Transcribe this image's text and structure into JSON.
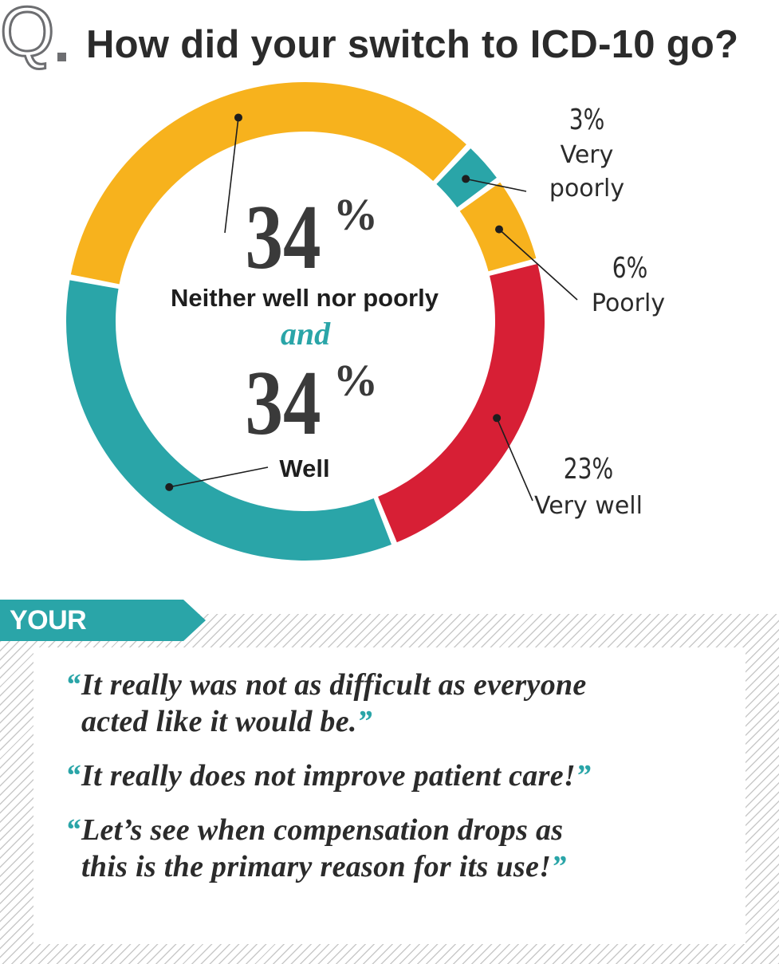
{
  "header": {
    "q_letter": "Q",
    "title": "How did your switch to ICD-10 go?"
  },
  "colors": {
    "yellow": "#f7b21d",
    "teal": "#2aa5a8",
    "red": "#d71f35",
    "connector": "#2aa5a8"
  },
  "chart_data": {
    "type": "pie",
    "title": "How did your switch to ICD-10 go?",
    "donut": true,
    "slices": [
      {
        "label": "Very poorly",
        "value": 3,
        "pct_text": "3%",
        "label_lines": [
          "Very",
          "poorly"
        ],
        "color": "#2aa5a8"
      },
      {
        "label": "Poorly",
        "value": 6,
        "pct_text": "6%",
        "label_lines": [
          "Poorly"
        ],
        "color": "#f7b21d"
      },
      {
        "label": "Very well",
        "value": 23,
        "pct_text": "23%",
        "label_lines": [
          "Very well"
        ],
        "color": "#d71f35"
      },
      {
        "label": "Well",
        "value": 34,
        "pct_text": "34",
        "label_lines": [
          "Well"
        ],
        "color": "#2aa5a8"
      },
      {
        "label": "Neither well nor poorly",
        "value": 34,
        "pct_text": "34",
        "label_lines": [
          "Neither well nor poorly"
        ],
        "color": "#f7b21d"
      }
    ],
    "center": {
      "top_value": "34",
      "top_percent_sign": "%",
      "top_label": "Neither well nor poorly",
      "connector": "and",
      "bottom_value": "34",
      "bottom_percent_sign": "%",
      "bottom_label": "Well"
    }
  },
  "thoughts": {
    "title": "YOUR THOUGHTS",
    "open_mark": "“",
    "close_mark": "”",
    "quotes": [
      {
        "lines": [
          "It really was not as difficult as everyone",
          "acted like it would be."
        ]
      },
      {
        "lines": [
          "It really does not improve patient care!"
        ]
      },
      {
        "lines": [
          "Let’s see when compensation drops as",
          "this is the primary reason for its use!"
        ]
      }
    ]
  }
}
